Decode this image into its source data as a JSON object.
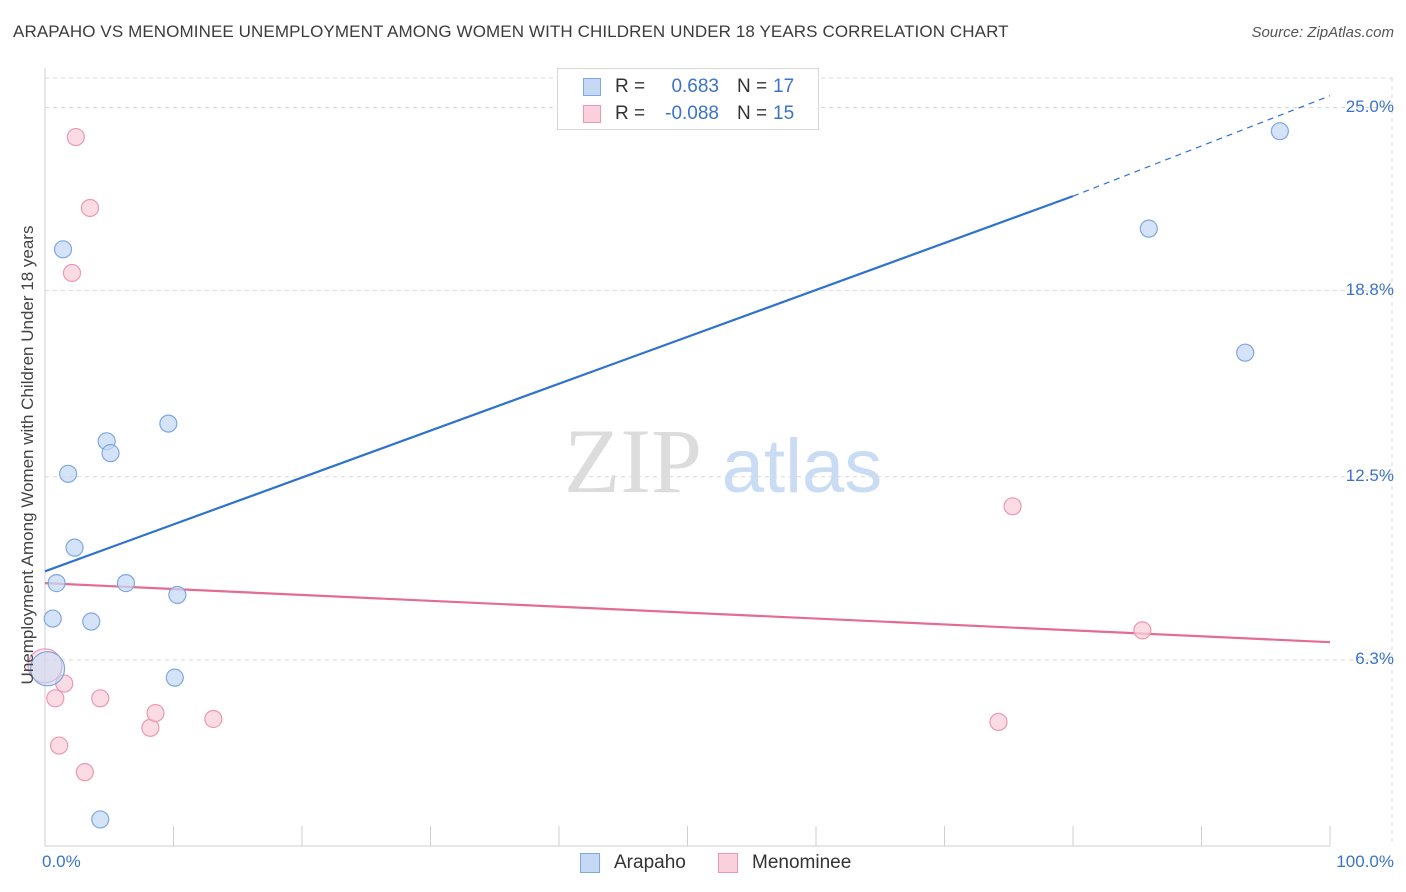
{
  "title": "ARAPAHO VS MENOMINEE UNEMPLOYMENT AMONG WOMEN WITH CHILDREN UNDER 18 YEARS CORRELATION CHART",
  "source": "Source: ZipAtlas.com",
  "watermark": {
    "zip": "ZIP",
    "atlas": "atlas"
  },
  "colors": {
    "arapaho_fill": "#c5d9f5",
    "arapaho_stroke": "#7fa8e0",
    "arapaho_line": "#2f72d0",
    "menominee_fill": "#f9d0dc",
    "menominee_stroke": "#ec98b2",
    "menominee_line": "#e46b94",
    "tick_label": "#3b73c8",
    "grid": "#d9d9d9"
  },
  "legend_top": {
    "rows": [
      {
        "series": "Arapaho",
        "r_label": "R =",
        "r_value": "0.683",
        "n_label": "N =",
        "n_value": "17"
      },
      {
        "series": "Menominee",
        "r_label": "R =",
        "r_value": "-0.088",
        "n_label": "N =",
        "n_value": "15"
      }
    ]
  },
  "legend_bottom": {
    "items": [
      {
        "label": "Arapaho"
      },
      {
        "label": "Menominee"
      }
    ]
  },
  "chart_data": {
    "type": "scatter",
    "title": "ARAPAHO VS MENOMINEE UNEMPLOYMENT AMONG WOMEN WITH CHILDREN UNDER 18 YEARS CORRELATION CHART",
    "xlabel": "",
    "ylabel": "Unemployment Among Women with Children Under 18 years",
    "xlim": [
      0,
      100
    ],
    "ylim": [
      0,
      26
    ],
    "x_tick_labels": [
      {
        "value": 0,
        "label": "0.0%"
      },
      {
        "value": 100,
        "label": "100.0%"
      }
    ],
    "y_tick_labels": [
      {
        "value": 6.3,
        "label": "6.3%"
      },
      {
        "value": 12.5,
        "label": "12.5%"
      },
      {
        "value": 18.8,
        "label": "18.8%"
      },
      {
        "value": 25.0,
        "label": "25.0%"
      }
    ],
    "grid": true,
    "legend": "bottom",
    "series": [
      {
        "name": "Arapaho",
        "r": 0.683,
        "n": 17,
        "points": [
          {
            "x": 0.2,
            "y": 6.0,
            "large": true
          },
          {
            "x": 0.6,
            "y": 7.7
          },
          {
            "x": 0.9,
            "y": 8.9
          },
          {
            "x": 1.4,
            "y": 20.2
          },
          {
            "x": 1.8,
            "y": 12.6
          },
          {
            "x": 2.3,
            "y": 10.1
          },
          {
            "x": 3.6,
            "y": 7.6
          },
          {
            "x": 4.3,
            "y": 0.9
          },
          {
            "x": 4.8,
            "y": 13.7
          },
          {
            "x": 5.1,
            "y": 13.3
          },
          {
            "x": 6.3,
            "y": 8.9
          },
          {
            "x": 9.6,
            "y": 14.3
          },
          {
            "x": 10.1,
            "y": 5.7
          },
          {
            "x": 10.3,
            "y": 8.5
          },
          {
            "x": 85.9,
            "y": 20.9
          },
          {
            "x": 93.4,
            "y": 16.7
          },
          {
            "x": 96.1,
            "y": 24.2
          }
        ],
        "trendline": {
          "x0": 0,
          "y0": 9.3,
          "x_solid_end": 80,
          "y_solid_end": 22.0,
          "x1": 100,
          "y1": 25.4,
          "dashed_after_solid": true
        }
      },
      {
        "name": "Menominee",
        "r": -0.088,
        "n": 15,
        "points": [
          {
            "x": 0.0,
            "y": 6.1,
            "large": true
          },
          {
            "x": 0.8,
            "y": 5.0
          },
          {
            "x": 1.1,
            "y": 3.4
          },
          {
            "x": 1.5,
            "y": 5.5
          },
          {
            "x": 2.1,
            "y": 19.4
          },
          {
            "x": 2.4,
            "y": 24.0
          },
          {
            "x": 3.1,
            "y": 2.5
          },
          {
            "x": 3.5,
            "y": 21.6
          },
          {
            "x": 4.3,
            "y": 5.0
          },
          {
            "x": 8.2,
            "y": 4.0
          },
          {
            "x": 8.6,
            "y": 4.5
          },
          {
            "x": 13.1,
            "y": 4.3
          },
          {
            "x": 74.2,
            "y": 4.2
          },
          {
            "x": 75.3,
            "y": 11.5
          },
          {
            "x": 85.4,
            "y": 7.3
          }
        ],
        "trendline": {
          "x0": 0,
          "y0": 8.9,
          "x1": 100,
          "y1": 6.9,
          "dashed_after_solid": false
        }
      }
    ]
  }
}
